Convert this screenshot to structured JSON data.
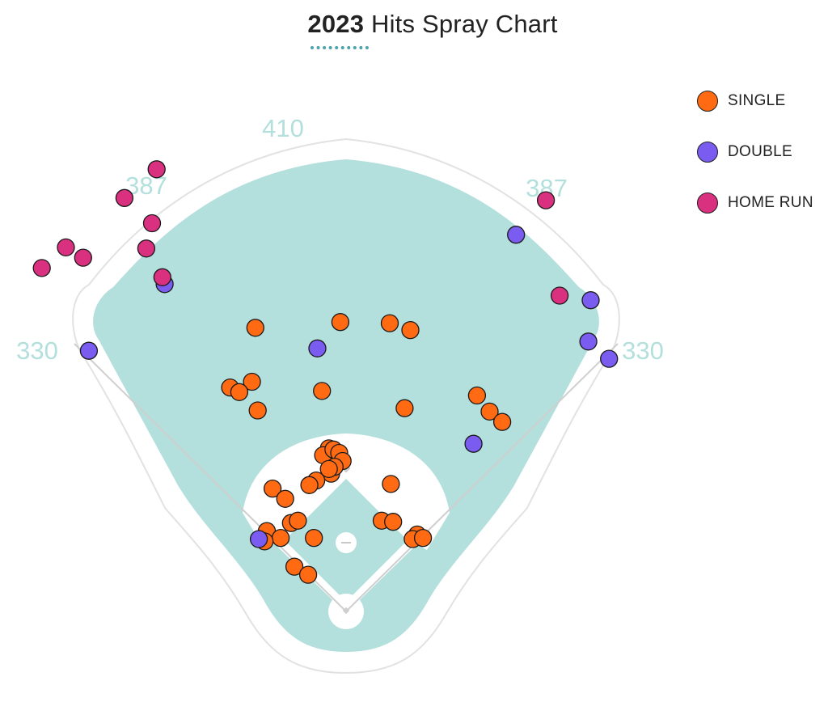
{
  "title": {
    "year": "2023",
    "text": "Hits Spray Chart"
  },
  "colors": {
    "single": "#ff6a13",
    "double": "#7b5cf0",
    "home_run": "#d9307f",
    "outfield": "#b3dfdc",
    "distance_text": "#b3dfdc"
  },
  "legend": [
    {
      "key": "single",
      "label": "SINGLE"
    },
    {
      "key": "double",
      "label": "DOUBLE"
    },
    {
      "key": "home_run",
      "label": "HOME RUN"
    }
  ],
  "fence_distances": {
    "left_line": "330",
    "left_center": "387",
    "center": "410",
    "right_center": "387",
    "right_line": "330"
  },
  "chart_data": {
    "type": "scatter",
    "title": "2023 Hits Spray Chart",
    "units": "feet from home plate; positive x toward right field, y toward center field",
    "series": [
      {
        "name": "SINGLE",
        "points": [
          [
            -79,
            247
          ],
          [
            -5,
            252
          ],
          [
            38,
            251
          ],
          [
            56,
            245
          ],
          [
            -82,
            200
          ],
          [
            -101,
            195
          ],
          [
            -93,
            191
          ],
          [
            -21,
            192
          ],
          [
            -77,
            175
          ],
          [
            51,
            177
          ],
          [
            114,
            188
          ],
          [
            125,
            174
          ],
          [
            136,
            165
          ],
          [
            -15,
            142
          ],
          [
            -20,
            136
          ],
          [
            -11,
            141
          ],
          [
            -6,
            138
          ],
          [
            -3,
            131
          ],
          [
            -13,
            120
          ],
          [
            -10,
            126
          ],
          [
            -26,
            114
          ],
          [
            -32,
            110
          ],
          [
            -15,
            124
          ],
          [
            39,
            111
          ],
          [
            -64,
            107
          ],
          [
            -53,
            98
          ],
          [
            -48,
            77
          ],
          [
            -42,
            79
          ],
          [
            -69,
            70
          ],
          [
            -57,
            64
          ],
          [
            -28,
            64
          ],
          [
            31,
            79
          ],
          [
            41,
            78
          ],
          [
            62,
            67
          ],
          [
            -71,
            61
          ],
          [
            58,
            63
          ],
          [
            67,
            64
          ],
          [
            -45,
            39
          ],
          [
            -33,
            32
          ]
        ]
      },
      {
        "name": "DOUBLE",
        "points": [
          [
            -158,
            285
          ],
          [
            -224,
            227
          ],
          [
            -25,
            229
          ],
          [
            148,
            328
          ],
          [
            213,
            271
          ],
          [
            211,
            235
          ],
          [
            229,
            220
          ],
          [
            111,
            146
          ],
          [
            -76,
            63
          ]
        ]
      },
      {
        "name": "HOME RUN",
        "points": [
          [
            -244,
            317
          ],
          [
            -193,
            360
          ],
          [
            -165,
            385
          ],
          [
            -312,
            243
          ],
          [
            -265,
            299
          ],
          [
            -229,
            308
          ],
          [
            -169,
            338
          ],
          [
            -174,
            316
          ],
          [
            -160,
            291
          ],
          [
            174,
            358
          ],
          [
            186,
            275
          ]
        ]
      }
    ]
  }
}
